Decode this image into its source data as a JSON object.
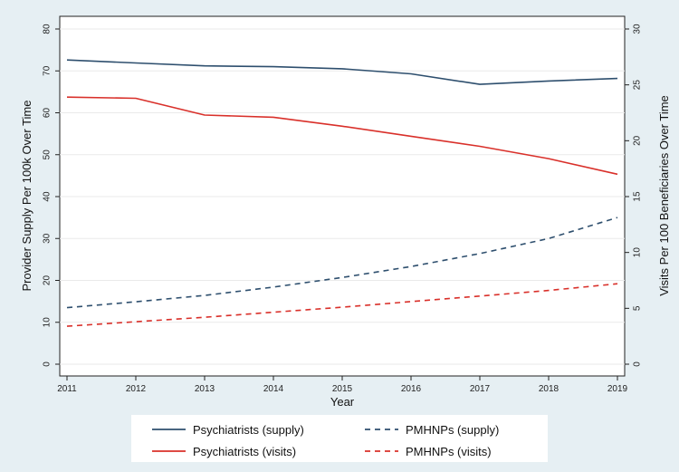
{
  "chart_data": {
    "type": "line",
    "xlabel": "Year",
    "ylabel": "Provider Supply Per 100k Over Time",
    "y2label": "Visits Per 100 Beneficiaries Over Time",
    "x": [
      2011,
      2012,
      2013,
      2014,
      2015,
      2016,
      2017,
      2018,
      2019
    ],
    "xticks": [
      "2011",
      "2012",
      "2013",
      "2014",
      "2015",
      "2016",
      "2017",
      "2018",
      "2019"
    ],
    "ylim": [
      0,
      80
    ],
    "yticks": [
      "0",
      "10",
      "20",
      "30",
      "40",
      "50",
      "60",
      "70",
      "80"
    ],
    "y2lim": [
      0,
      30
    ],
    "y2ticks": [
      "0",
      "5",
      "10",
      "15",
      "20",
      "25",
      "30"
    ],
    "series": [
      {
        "name": "Psychiatrists (supply)",
        "axis": "left",
        "color": "#2e4f6e",
        "dash": false,
        "values": [
          72.6,
          71.9,
          71.2,
          71.0,
          70.5,
          69.3,
          66.8,
          67.6,
          68.2
        ]
      },
      {
        "name": "PMHNPs (supply)",
        "axis": "left",
        "color": "#2e4f6e",
        "dash": true,
        "values": [
          13.5,
          14.9,
          16.4,
          18.4,
          20.7,
          23.3,
          26.4,
          30.0,
          35.0
        ]
      },
      {
        "name": "Psychiatrists (visits)",
        "axis": "right",
        "color": "#d9302a",
        "dash": false,
        "values": [
          23.9,
          23.8,
          22.3,
          22.1,
          21.3,
          20.4,
          19.5,
          18.4,
          17.0
        ]
      },
      {
        "name": "PMHNPs (visits)",
        "axis": "right",
        "color": "#d9302a",
        "dash": true,
        "values": [
          3.4,
          3.8,
          4.2,
          4.65,
          5.1,
          5.6,
          6.1,
          6.6,
          7.2
        ]
      }
    ],
    "legend": {
      "position": "bottom",
      "entries": [
        "Psychiatrists (supply)",
        "PMHNPs (supply)",
        "Psychiatrists (visits)",
        "PMHNPs (visits)"
      ]
    }
  }
}
